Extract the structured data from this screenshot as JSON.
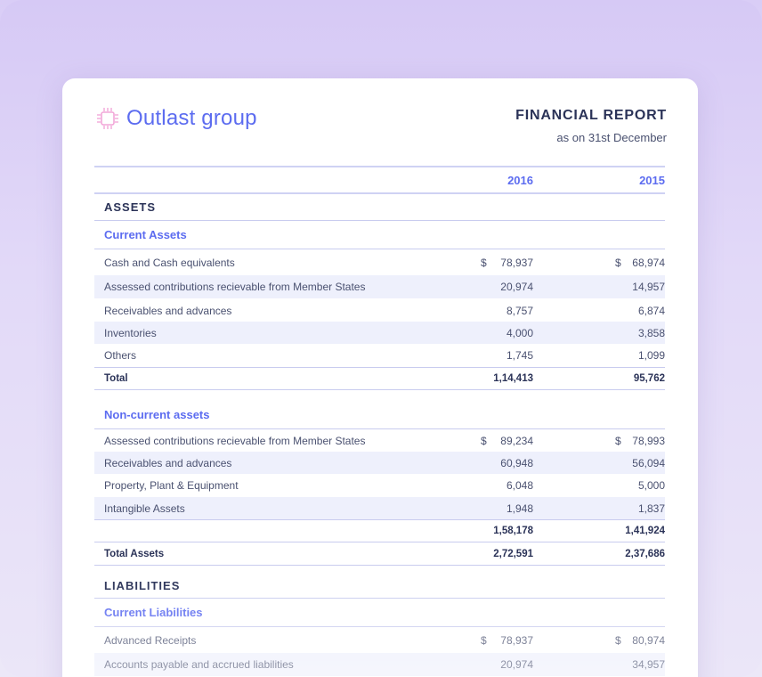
{
  "brand": {
    "name": "Outlast group",
    "logo_icon": "chip-icon"
  },
  "report": {
    "title": "FINANCIAL REPORT",
    "subtitle": "as on 31st December"
  },
  "columns": {
    "year1": "2016",
    "year2": "2015",
    "currency": "$"
  },
  "assets": {
    "section_label": "ASSETS",
    "current": {
      "label": "Current Assets",
      "rows": [
        {
          "label": "Cash and Cash equivalents",
          "v2016": "78,937",
          "v2015": "68,974"
        },
        {
          "label": "Assessed contributions recievable from Member States",
          "v2016": "20,974",
          "v2015": "14,957"
        },
        {
          "label": "Receivables and advances",
          "v2016": "8,757",
          "v2015": "6,874"
        },
        {
          "label": "Inventories",
          "v2016": "4,000",
          "v2015": "3,858"
        },
        {
          "label": "Others",
          "v2016": "1,745",
          "v2015": "1,099"
        }
      ],
      "total": {
        "label": "Total",
        "v2016": "1,14,413",
        "v2015": "95,762"
      }
    },
    "noncurrent": {
      "label": "Non-current assets",
      "rows": [
        {
          "label": "Assessed contributions recievable from Member States",
          "v2016": "89,234",
          "v2015": "78,993"
        },
        {
          "label": "Receivables and advances",
          "v2016": "60,948",
          "v2015": "56,094"
        },
        {
          "label": "Property, Plant & Equipment",
          "v2016": "6,048",
          "v2015": "5,000"
        },
        {
          "label": "Intangible Assets",
          "v2016": "1,948",
          "v2015": "1,837"
        }
      ],
      "subtotal": {
        "v2016": "1,58,178",
        "v2015": "1,41,924"
      }
    },
    "total_assets": {
      "label": "Total Assets",
      "v2016": "2,72,591",
      "v2015": "2,37,686"
    }
  },
  "liabilities": {
    "section_label": "LIABILITIES",
    "current": {
      "label": "Current Liabilities",
      "rows": [
        {
          "label": "Advanced Receipts",
          "v2016": "78,937",
          "v2015": "80,974"
        },
        {
          "label": "Accounts payable and accrued liabilities",
          "v2016": "20,974",
          "v2015": "34,957"
        }
      ]
    }
  },
  "colors": {
    "accent": "#5c6cf0",
    "text_dark": "#2b3358",
    "row_shade": "#eef0fc",
    "rule": "#c9ccef"
  }
}
